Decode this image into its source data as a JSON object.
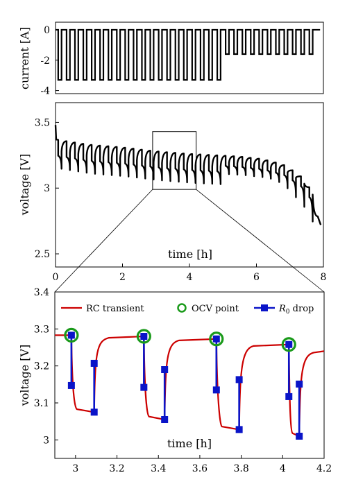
{
  "colors": {
    "current_line": "#000000",
    "voltage_line": "#000000",
    "rc_transient": "#cc0000",
    "ocv_point": "#1a9a1a",
    "r0_drop": "#0a14c8",
    "zoom_box": "#000000"
  },
  "chart_data": [
    {
      "type": "line",
      "panel": "top",
      "ylabel": "current [A]",
      "xlabel": "",
      "xlim": [
        0,
        8
      ],
      "ylim": [
        -4.2,
        0.5
      ],
      "yticks": [
        "0",
        "-2",
        "-4"
      ],
      "ytick_values": [
        0,
        -2,
        -4
      ],
      "grid": false,
      "series": [
        {
          "pulses_phase1": {
            "start": 0.08,
            "period": 0.25,
            "width": 0.1,
            "count": 20,
            "level": -3.3
          },
          "pulses_phase2": {
            "start": 5.08,
            "period": 0.25,
            "width": 0.1,
            "count": 11,
            "level": -1.6
          },
          "rest_level": 0,
          "x_end": 7.9
        }
      ]
    },
    {
      "type": "line",
      "panel": "middle",
      "ylabel": "voltage [V]",
      "xlabel": "time [h]",
      "xlim": [
        0,
        8
      ],
      "ylim": [
        2.4,
        3.65
      ],
      "xticks": [
        "0",
        "2",
        "4",
        "6",
        "8"
      ],
      "xtick_values": [
        0,
        2,
        4,
        6,
        8
      ],
      "yticks": [
        "3.5",
        "3",
        "2.5"
      ],
      "ytick_values": [
        3.5,
        3,
        2.5
      ],
      "grid": false,
      "zoom_box": {
        "x": [
          2.9,
          4.2
        ],
        "y": [
          2.99,
          3.43
        ]
      },
      "series": [
        {
          "rest_voltage_x": [
            0,
            1,
            2,
            3,
            4,
            4.8,
            5.5,
            6.2,
            6.8,
            7.3,
            7.6,
            7.9
          ],
          "rest_voltage_y": [
            3.37,
            3.33,
            3.31,
            3.28,
            3.26,
            3.25,
            3.24,
            3.22,
            3.18,
            3.1,
            3.0,
            2.72
          ],
          "drop_phase1": 0.22,
          "drop_phase2": 0.14,
          "initial_peak": 3.48
        }
      ]
    },
    {
      "type": "line",
      "panel": "bottom",
      "ylabel": "voltage [V]",
      "xlabel": "time [h]",
      "xlim": [
        2.9,
        4.2
      ],
      "ylim": [
        2.95,
        3.4
      ],
      "xticks": [
        "3",
        "3.2",
        "3.4",
        "3.6",
        "3.8",
        "4",
        "4.2"
      ],
      "xtick_values": [
        3,
        3.2,
        3.4,
        3.6,
        3.8,
        4,
        4.2
      ],
      "yticks": [
        "3",
        "3.1",
        "3.2",
        "3.3",
        "3.4"
      ],
      "ytick_values": [
        3,
        3.1,
        3.2,
        3.3,
        3.4
      ],
      "grid": false,
      "legend": {
        "placement": "top",
        "entries": [
          {
            "label": "RC transient",
            "style": "line"
          },
          {
            "label": "OCV point",
            "style": "circle"
          },
          {
            "label_main": "R",
            "label_sub": "0",
            "label_rest": " drop",
            "style": "line-square"
          }
        ]
      },
      "pulses": [
        {
          "t_start": 2.98,
          "t_end": 3.09,
          "ocv": 3.283,
          "v_after_r0": 3.147,
          "v_end": 3.075,
          "v_recover": 3.207
        },
        {
          "t_start": 3.33,
          "t_end": 3.43,
          "ocv": 3.28,
          "v_after_r0": 3.142,
          "v_end": 3.055,
          "v_recover": 3.19
        },
        {
          "t_start": 3.68,
          "t_end": 3.79,
          "ocv": 3.273,
          "v_after_r0": 3.135,
          "v_end": 3.028,
          "v_recover": 3.163
        },
        {
          "t_start": 4.03,
          "t_end": 4.08,
          "ocv": 3.258,
          "v_after_r0": 3.117,
          "v_end": 3.01,
          "v_recover": 3.151
        }
      ],
      "initial_level": 3.283,
      "final_recover_level": 3.24
    }
  ]
}
